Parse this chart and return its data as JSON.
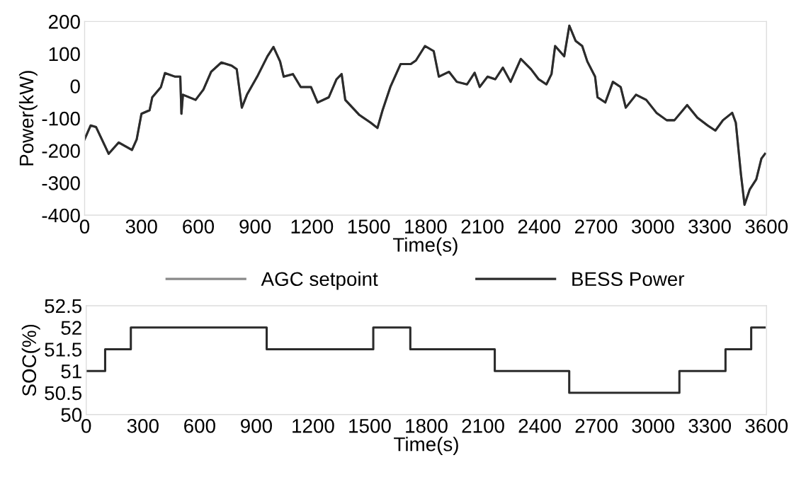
{
  "chart_data": [
    {
      "type": "line",
      "xlabel": "Time(s)",
      "ylabel": "Power(kW)",
      "xlim": [
        0,
        3600
      ],
      "xticks": [
        0,
        300,
        600,
        900,
        1200,
        1500,
        1800,
        2100,
        2400,
        2700,
        3000,
        3300,
        3600
      ],
      "ylim": [
        -400,
        200
      ],
      "yticks": [
        -400,
        -300,
        -200,
        -100,
        0,
        100,
        200
      ],
      "grid": false,
      "legend": "bottom",
      "x": [
        0,
        32,
        60,
        127,
        180,
        250,
        275,
        300,
        343,
        357,
        403,
        424,
        478,
        505,
        511,
        519,
        586,
        627,
        668,
        722,
        776,
        803,
        830,
        857,
        911,
        965,
        997,
        1032,
        1051,
        1100,
        1141,
        1195,
        1230,
        1289,
        1330,
        1357,
        1376,
        1451,
        1511,
        1546,
        1573,
        1614,
        1668,
        1722,
        1749,
        1797,
        1843,
        1870,
        1924,
        1965,
        2019,
        2059,
        2086,
        2127,
        2168,
        2208,
        2249,
        2303,
        2357,
        2397,
        2438,
        2465,
        2484,
        2532,
        2559,
        2592,
        2627,
        2654,
        2695,
        2708,
        2749,
        2789,
        2830,
        2857,
        2911,
        2965,
        3019,
        3073,
        3114,
        3181,
        3235,
        3289,
        3330,
        3370,
        3419,
        3438,
        3465,
        3484,
        3511,
        3546,
        3573,
        3592
      ],
      "series": [
        {
          "name": "AGC setpoint",
          "color": "#8a8a8a",
          "values": [
            -165,
            -122,
            -127,
            -210,
            -175,
            -198,
            -165,
            -86,
            -75,
            -35,
            -3,
            40,
            29,
            29,
            -86,
            -27,
            -43,
            -11,
            44,
            73,
            63,
            52,
            -67,
            -27,
            29,
            92,
            121,
            76,
            29,
            37,
            -3,
            -3,
            -51,
            -35,
            21,
            37,
            -43,
            -90,
            -114,
            -130,
            -75,
            -3,
            68,
            68,
            79,
            124,
            108,
            29,
            44,
            13,
            5,
            41,
            -3,
            29,
            21,
            57,
            13,
            84,
            52,
            21,
            5,
            37,
            124,
            92,
            187,
            140,
            124,
            76,
            29,
            -35,
            -51,
            13,
            -3,
            -67,
            -27,
            -43,
            -83,
            -106,
            -106,
            -59,
            -98,
            -122,
            -138,
            -106,
            -83,
            -114,
            -273,
            -368,
            -321,
            -289,
            -225,
            -210
          ]
        },
        {
          "name": "BESS Power",
          "color": "#2b2b2b",
          "values": [
            -165,
            -122,
            -127,
            -210,
            -175,
            -198,
            -165,
            -86,
            -75,
            -35,
            -3,
            40,
            29,
            29,
            -86,
            -27,
            -43,
            -11,
            44,
            73,
            63,
            52,
            -67,
            -27,
            29,
            92,
            121,
            76,
            29,
            37,
            -3,
            -3,
            -51,
            -35,
            21,
            37,
            -43,
            -90,
            -114,
            -130,
            -75,
            -3,
            68,
            68,
            79,
            124,
            108,
            29,
            44,
            13,
            5,
            41,
            -3,
            29,
            21,
            57,
            13,
            84,
            52,
            21,
            5,
            37,
            124,
            92,
            187,
            140,
            124,
            76,
            29,
            -35,
            -51,
            13,
            -3,
            -67,
            -27,
            -43,
            -83,
            -106,
            -106,
            -59,
            -98,
            -122,
            -138,
            -106,
            -83,
            -114,
            -273,
            -368,
            -321,
            -289,
            -225,
            -210
          ]
        }
      ]
    },
    {
      "type": "step",
      "xlabel": "Time(s)",
      "ylabel": "SOC(%)",
      "xlim": [
        0,
        3600
      ],
      "xticks": [
        0,
        300,
        600,
        900,
        1200,
        1500,
        1800,
        2100,
        2400,
        2700,
        3000,
        3300,
        3600
      ],
      "ylim": [
        50,
        52.5
      ],
      "yticks": [
        50,
        50.5,
        51,
        51.5,
        52,
        52.5
      ],
      "grid": false,
      "x": [
        0,
        100,
        236,
        955,
        1519,
        1715,
        2162,
        2556,
        3139,
        3383,
        3519,
        3590
      ],
      "series": [
        {
          "color": "#2b2b2b",
          "values": [
            51,
            51.5,
            52,
            51.5,
            52,
            51.5,
            51,
            50.5,
            51,
            51.5,
            52,
            52
          ]
        }
      ]
    }
  ]
}
